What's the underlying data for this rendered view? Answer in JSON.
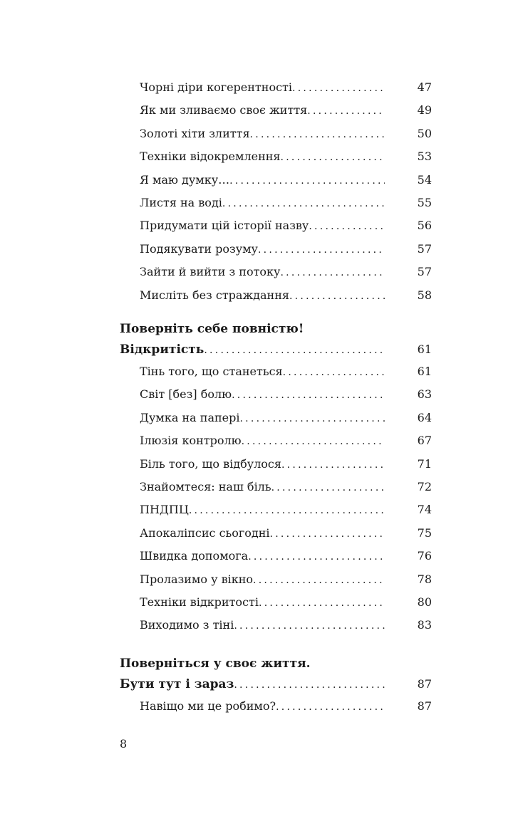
{
  "groups": [
    {
      "heading": [],
      "entries": [
        {
          "title": "Чорні діри когерентності",
          "page": "47"
        },
        {
          "title": "Як ми зливаємо своє життя",
          "page": "49"
        },
        {
          "title": "Золоті хіти злиття",
          "page": "50"
        },
        {
          "title": "Техніки відокремлення",
          "page": "53"
        },
        {
          "title": "Я маю думку…",
          "page": "54"
        },
        {
          "title": "Листя на воді",
          "page": "55"
        },
        {
          "title": "Придумати цій історії назву",
          "page": "56"
        },
        {
          "title": "Подякувати розуму",
          "page": "57"
        },
        {
          "title": "Зайти й вийти з потоку",
          "page": "57"
        },
        {
          "title": "Мисліть без страждання",
          "page": "58"
        }
      ]
    },
    {
      "heading": [
        {
          "title": "Поверніть себе повністю!",
          "page": ""
        },
        {
          "title": "Відкритість",
          "page": "61"
        }
      ],
      "entries": [
        {
          "title": "Тінь того, що станеться",
          "page": "61"
        },
        {
          "title": "Світ [без] болю",
          "page": "63"
        },
        {
          "title": "Думка на папері",
          "page": "64"
        },
        {
          "title": "Ілюзія контролю",
          "page": "67"
        },
        {
          "title": "Біль того, що відбулося",
          "page": "71"
        },
        {
          "title": "Знайомтеся: наш біль",
          "page": "72"
        },
        {
          "title": "ПНДПЦ",
          "page": "74"
        },
        {
          "title": "Апокаліпсис сьогодні",
          "page": "75"
        },
        {
          "title": "Швидка допомога",
          "page": "76"
        },
        {
          "title": "Пролазимо у вікно",
          "page": "78"
        },
        {
          "title": "Техніки відкритості",
          "page": "80"
        },
        {
          "title": "Виходимо з тіні",
          "page": "83"
        }
      ]
    },
    {
      "heading": [
        {
          "title": "Поверніться у своє життя.",
          "page": ""
        },
        {
          "title": "Бути тут і зараз",
          "page": "87"
        }
      ],
      "entries": [
        {
          "title": "Навіщо ми це робимо?",
          "page": "87"
        }
      ]
    }
  ],
  "folio": "8"
}
